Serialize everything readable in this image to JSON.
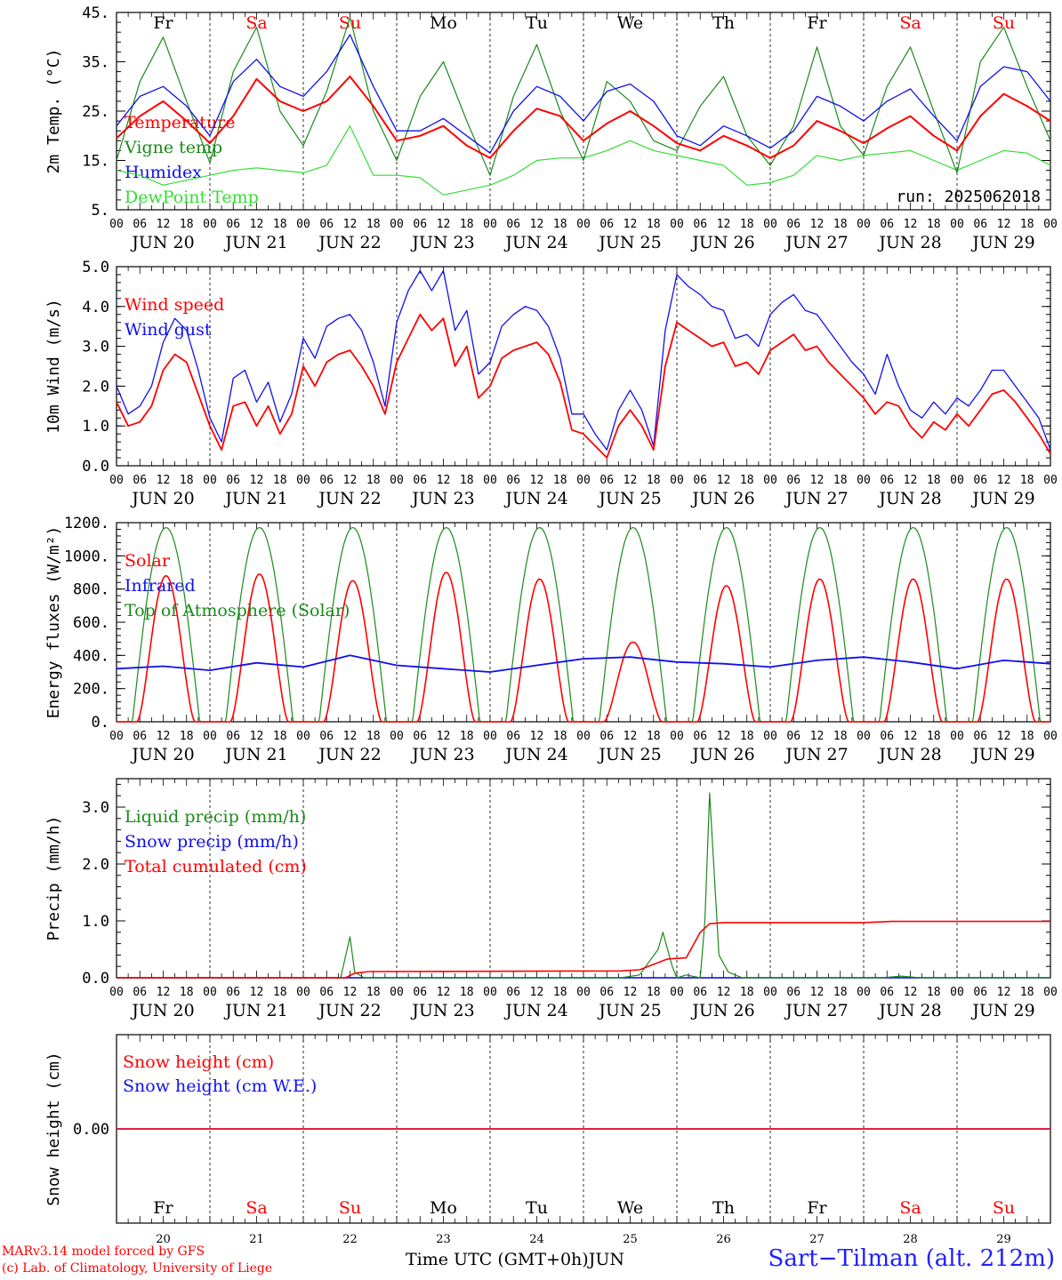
{
  "colors": {
    "red": "#ff0000",
    "green": "#1a8a1a",
    "blue": "#1010ee",
    "light_green": "#33dd33",
    "axis": "#000000"
  },
  "x_axis": {
    "hour_ticks": [
      "00",
      "06",
      "12",
      "18"
    ],
    "last_hour_tick": "00",
    "dates": [
      "JUN 20",
      "JUN 21",
      "JUN 22",
      "JUN 23",
      "JUN 24",
      "JUN 25",
      "JUN 26",
      "JUN 27",
      "JUN 28",
      "JUN 29"
    ],
    "weekdays": [
      "Fr",
      "Sa",
      "Su",
      "Mo",
      "Tu",
      "We",
      "Th",
      "Fr",
      "Sa",
      "Su"
    ],
    "weekday_colors": [
      "#000000",
      "#ff0000",
      "#ff0000",
      "#000000",
      "#000000",
      "#000000",
      "#000000",
      "#000000",
      "#ff0000",
      "#ff0000"
    ],
    "day_numbers": [
      "20",
      "21",
      "22",
      "23",
      "24",
      "25",
      "26",
      "27",
      "28",
      "29"
    ]
  },
  "chart_data": [
    {
      "type": "line",
      "ylabel": "2m Temp. (°C)",
      "ylim": [
        5,
        45
      ],
      "ytick_labels": [
        "5.",
        "15.",
        "25.",
        "35.",
        "45."
      ],
      "annotation": "run: 2025062018",
      "x_unit": "day offset from Jun 20 00 UTC",
      "series": [
        {
          "name": "Temperature",
          "color": "#ff0000",
          "x": [
            0,
            0.25,
            0.5,
            0.75,
            1,
            1.25,
            1.5,
            1.75,
            2,
            2.25,
            2.5,
            2.75,
            3,
            3.25,
            3.5,
            3.75,
            4,
            4.25,
            4.5,
            4.75,
            5,
            5.25,
            5.5,
            5.75,
            6,
            6.25,
            6.5,
            6.75,
            7,
            7.25,
            7.5,
            7.75,
            8,
            8.25,
            8.5,
            8.75,
            9,
            9.25,
            9.5,
            9.75,
            10
          ],
          "y": [
            19.5,
            24,
            27,
            23,
            18.5,
            24,
            31.5,
            27,
            25,
            27,
            32,
            26,
            19,
            20,
            22,
            18,
            15.5,
            21,
            25.5,
            24,
            19,
            22.5,
            25,
            22,
            18.5,
            17,
            20,
            18,
            15.5,
            18,
            23,
            21,
            18.5,
            21.5,
            24,
            20,
            17,
            24,
            28.5,
            26,
            23
          ]
        },
        {
          "name": "Vigne temp",
          "color": "#1a8a1a",
          "x": [
            0,
            0.25,
            0.5,
            0.75,
            1,
            1.25,
            1.5,
            1.75,
            2,
            2.25,
            2.5,
            2.75,
            3,
            3.25,
            3.5,
            3.75,
            4,
            4.25,
            4.5,
            4.75,
            5,
            5.25,
            5.5,
            5.75,
            6,
            6.25,
            6.5,
            6.75,
            7,
            7.25,
            7.5,
            7.75,
            8,
            8.25,
            8.5,
            8.75,
            9,
            9.25,
            9.5,
            9.75,
            10
          ],
          "y": [
            15,
            31,
            40,
            27,
            14.5,
            33,
            42,
            25,
            18,
            29,
            44,
            25,
            15,
            28,
            35,
            23,
            12,
            28,
            38.5,
            25,
            15,
            31,
            27,
            19,
            17,
            26,
            32,
            20,
            14,
            22,
            38,
            22,
            16,
            30,
            38,
            25,
            12.5,
            35,
            42,
            30,
            19
          ]
        },
        {
          "name": "Humidex",
          "color": "#1010ee",
          "x": [
            0,
            0.25,
            0.5,
            0.75,
            1,
            1.25,
            1.5,
            1.75,
            2,
            2.25,
            2.5,
            2.75,
            3,
            3.25,
            3.5,
            3.75,
            4,
            4.25,
            4.5,
            4.75,
            5,
            5.25,
            5.5,
            5.75,
            6,
            6.25,
            6.5,
            6.75,
            7,
            7.25,
            7.5,
            7.75,
            8,
            8.25,
            8.5,
            8.75,
            9,
            9.25,
            9.5,
            9.75,
            10
          ],
          "y": [
            22,
            28,
            30,
            26,
            20,
            31,
            35.5,
            30,
            28,
            33,
            40.5,
            30,
            21,
            21,
            23.5,
            20,
            16.5,
            25,
            30,
            28,
            23,
            29,
            30.5,
            27,
            20,
            18,
            22,
            20,
            17.5,
            21,
            28,
            26,
            23,
            27,
            29.5,
            24,
            19,
            30,
            34,
            33,
            27
          ]
        },
        {
          "name": "DewPoint Temp",
          "color": "#33dd33",
          "x": [
            0,
            0.25,
            0.5,
            0.75,
            1,
            1.25,
            1.5,
            1.75,
            2,
            2.25,
            2.5,
            2.75,
            3,
            3.25,
            3.5,
            3.75,
            4,
            4.25,
            4.5,
            4.75,
            5,
            5.25,
            5.5,
            5.75,
            6,
            6.25,
            6.5,
            6.75,
            7,
            7.25,
            7.5,
            7.75,
            8,
            8.25,
            8.5,
            8.75,
            9,
            9.25,
            9.5,
            9.75,
            10
          ],
          "y": [
            13,
            12,
            10,
            11,
            12,
            13,
            13.5,
            13,
            12.5,
            14,
            22,
            12,
            12,
            11.5,
            8,
            9,
            10,
            12,
            15,
            15.5,
            15.5,
            17,
            19,
            17,
            16,
            15,
            14,
            10,
            10.5,
            12,
            16,
            15,
            16,
            16.5,
            17,
            15,
            13,
            15,
            17,
            16.5,
            14
          ]
        }
      ]
    },
    {
      "type": "line",
      "ylabel": "10m Wind (m/s)",
      "ylim": [
        0,
        5
      ],
      "ytick_labels": [
        "0.0",
        "1.0",
        "2.0",
        "3.0",
        "4.0",
        "5.0"
      ],
      "x_unit": "day offset from Jun 20 00 UTC",
      "series": [
        {
          "name": "Wind speed",
          "color": "#ff0000",
          "x": [
            0,
            0.125,
            0.25,
            0.375,
            0.5,
            0.625,
            0.75,
            0.875,
            1,
            1.125,
            1.25,
            1.375,
            1.5,
            1.625,
            1.75,
            1.875,
            2,
            2.125,
            2.25,
            2.375,
            2.5,
            2.625,
            2.75,
            2.875,
            3,
            3.125,
            3.25,
            3.375,
            3.5,
            3.625,
            3.75,
            3.875,
            4,
            4.125,
            4.25,
            4.375,
            4.5,
            4.625,
            4.75,
            4.875,
            5,
            5.125,
            5.25,
            5.375,
            5.5,
            5.625,
            5.75,
            5.875,
            6,
            6.125,
            6.25,
            6.375,
            6.5,
            6.625,
            6.75,
            6.875,
            7,
            7.125,
            7.25,
            7.375,
            7.5,
            7.625,
            7.75,
            7.875,
            8,
            8.125,
            8.25,
            8.375,
            8.5,
            8.625,
            8.75,
            8.875,
            9,
            9.125,
            9.25,
            9.375,
            9.5,
            9.625,
            9.75,
            9.875,
            10
          ],
          "y": [
            1.6,
            1.0,
            1.1,
            1.5,
            2.4,
            2.8,
            2.6,
            1.8,
            1.0,
            0.4,
            1.5,
            1.6,
            1.0,
            1.5,
            0.8,
            1.3,
            2.5,
            2.0,
            2.6,
            2.8,
            2.9,
            2.5,
            2.0,
            1.3,
            2.6,
            3.2,
            3.8,
            3.4,
            3.7,
            2.5,
            3.0,
            1.7,
            2.0,
            2.7,
            2.9,
            3.0,
            3.1,
            2.8,
            2.1,
            0.9,
            0.8,
            0.5,
            0.2,
            1.0,
            1.4,
            1.0,
            0.4,
            2.5,
            3.6,
            3.4,
            3.2,
            3.0,
            3.1,
            2.5,
            2.6,
            2.3,
            2.9,
            3.1,
            3.3,
            2.9,
            3.0,
            2.6,
            2.3,
            2.0,
            1.7,
            1.3,
            1.6,
            1.5,
            1.0,
            0.7,
            1.1,
            0.9,
            1.3,
            1.0,
            1.4,
            1.8,
            1.9,
            1.6,
            1.2,
            0.8,
            0.3
          ]
        },
        {
          "name": "Wind gust",
          "color": "#1010ee",
          "x": [
            0,
            0.125,
            0.25,
            0.375,
            0.5,
            0.625,
            0.75,
            0.875,
            1,
            1.125,
            1.25,
            1.375,
            1.5,
            1.625,
            1.75,
            1.875,
            2,
            2.125,
            2.25,
            2.375,
            2.5,
            2.625,
            2.75,
            2.875,
            3,
            3.125,
            3.25,
            3.375,
            3.5,
            3.625,
            3.75,
            3.875,
            4,
            4.125,
            4.25,
            4.375,
            4.5,
            4.625,
            4.75,
            4.875,
            5,
            5.125,
            5.25,
            5.375,
            5.5,
            5.625,
            5.75,
            5.875,
            6,
            6.125,
            6.25,
            6.375,
            6.5,
            6.625,
            6.75,
            6.875,
            7,
            7.125,
            7.25,
            7.375,
            7.5,
            7.625,
            7.75,
            7.875,
            8,
            8.125,
            8.25,
            8.375,
            8.5,
            8.625,
            8.75,
            8.875,
            9,
            9.125,
            9.25,
            9.375,
            9.5,
            9.625,
            9.75,
            9.875,
            10
          ],
          "y": [
            2.0,
            1.3,
            1.5,
            2.0,
            3.1,
            3.7,
            3.4,
            2.4,
            1.2,
            0.6,
            2.2,
            2.4,
            1.6,
            2.1,
            1.1,
            1.8,
            3.2,
            2.7,
            3.5,
            3.7,
            3.8,
            3.4,
            2.6,
            1.5,
            3.6,
            4.4,
            4.9,
            4.4,
            4.9,
            3.4,
            3.9,
            2.3,
            2.6,
            3.5,
            3.8,
            4.0,
            3.9,
            3.5,
            2.7,
            1.3,
            1.3,
            0.8,
            0.4,
            1.4,
            1.9,
            1.4,
            0.5,
            3.4,
            4.8,
            4.5,
            4.3,
            4.0,
            3.9,
            3.2,
            3.3,
            3.0,
            3.8,
            4.1,
            4.3,
            3.9,
            3.8,
            3.4,
            3.0,
            2.6,
            2.3,
            1.8,
            2.8,
            2.0,
            1.4,
            1.2,
            1.6,
            1.3,
            1.7,
            1.5,
            1.9,
            2.4,
            2.4,
            2.0,
            1.6,
            1.2,
            0.4
          ]
        }
      ]
    },
    {
      "type": "line",
      "ylabel": "Energy fluxes (W/m²)",
      "ylim": [
        0,
        1200
      ],
      "ytick_labels": [
        "0.",
        "200.",
        "400.",
        "600.",
        "800.",
        "1000.",
        "1200."
      ],
      "x_unit": "day offset from Jun 20 00 UTC",
      "daily_solar_peaks": [
        880,
        890,
        850,
        900,
        860,
        480,
        820,
        860,
        860,
        860
      ],
      "series": [
        {
          "name": "Solar",
          "color": "#ff0000",
          "peak_per_day": [
            880,
            890,
            850,
            900,
            860,
            480,
            820,
            860,
            860,
            860
          ]
        },
        {
          "name": "Infrared",
          "color": "#1010ee",
          "x": [
            0,
            0.5,
            1,
            1.5,
            2,
            2.5,
            3,
            3.5,
            4,
            4.5,
            5,
            5.5,
            6,
            6.5,
            7,
            7.5,
            8,
            8.5,
            9,
            9.5,
            10
          ],
          "y": [
            320,
            335,
            310,
            355,
            330,
            400,
            340,
            320,
            300,
            340,
            380,
            390,
            360,
            350,
            330,
            370,
            390,
            360,
            320,
            370,
            350
          ]
        },
        {
          "name": "Top of Atmosphere (Solar)",
          "color": "#1a8a1a",
          "peak": 1170
        }
      ]
    },
    {
      "type": "line",
      "ylabel": "Precip (mm/h)",
      "ylim": [
        0,
        3.5
      ],
      "ytick_labels": [
        "0.0",
        "1.0",
        "2.0",
        "3.0"
      ],
      "x_unit": "day offset from Jun 20 00 UTC",
      "series": [
        {
          "name": "Liquid precip (mm/h)",
          "color": "#1a8a1a",
          "x": [
            0,
            2.4,
            2.5,
            2.55,
            2.65,
            2.8,
            5.4,
            5.6,
            5.8,
            5.85,
            5.95,
            6.0,
            6.1,
            6.25,
            6.3,
            6.35,
            6.45,
            6.55,
            6.7,
            7.0,
            8.2,
            8.4,
            8.6,
            10
          ],
          "y": [
            0,
            0,
            0.72,
            0.1,
            0,
            0,
            0,
            0.05,
            0.5,
            0.8,
            0.2,
            0,
            0.05,
            0,
            1.0,
            3.25,
            0.4,
            0.1,
            0,
            0,
            0,
            0.03,
            0,
            0
          ]
        },
        {
          "name": "Snow precip (mm/h)",
          "color": "#1010ee",
          "x": [
            0,
            10
          ],
          "y": [
            0,
            0
          ]
        },
        {
          "name": "Total cumulated (cm)",
          "color": "#ff0000",
          "x": [
            0,
            2.45,
            2.55,
            2.7,
            5.4,
            5.6,
            5.9,
            6.0,
            6.1,
            6.25,
            6.35,
            6.5,
            8.0,
            8.3,
            10
          ],
          "y": [
            0,
            0,
            0.08,
            0.11,
            0.12,
            0.14,
            0.33,
            0.34,
            0.35,
            0.8,
            0.95,
            0.97,
            0.97,
            0.99,
            0.99
          ]
        }
      ]
    },
    {
      "type": "line",
      "ylabel": "Snow height (cm)",
      "ytick_labels": [
        "0.00"
      ],
      "x_unit": "day offset from Jun 20 00 UTC",
      "series": [
        {
          "name": "Snow height (cm)",
          "color": "#ff0000",
          "x": [
            0,
            10
          ],
          "y": [
            0,
            0
          ]
        },
        {
          "name": "Snow height (cm W.E.)",
          "color": "#1010ee",
          "x": [
            0,
            10
          ],
          "y": [
            0,
            0
          ]
        }
      ]
    }
  ],
  "footer": {
    "credit_line1": "MARv3.14 model forced by GFS",
    "credit_line2": "(c) Lab. of Climatology, University of Liege",
    "xlabel": "Time UTC (GMT+0h)",
    "month": "JUN",
    "station": "Sart−Tilman (alt. 212m)"
  }
}
